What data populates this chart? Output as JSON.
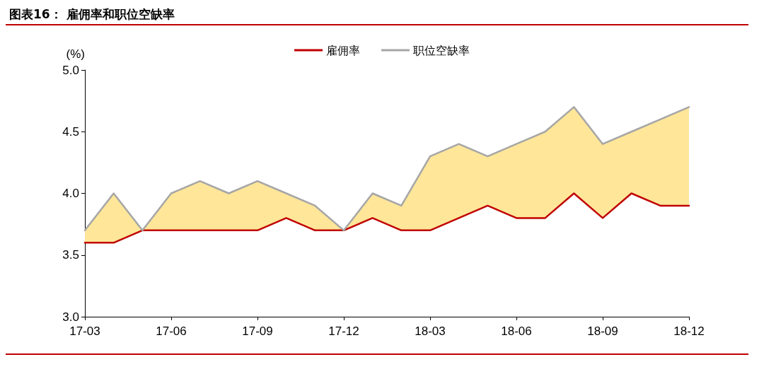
{
  "chart_data": {
    "type": "line",
    "title": "图表16： 雇佣率和职位空缺率",
    "ylabel": "(%)",
    "categories": [
      "17-03",
      null,
      null,
      "17-06",
      null,
      null,
      "17-09",
      null,
      null,
      "17-12",
      null,
      null,
      "18-03",
      null,
      null,
      "18-06",
      null,
      null,
      "18-09",
      null,
      null,
      "18-12"
    ],
    "series": [
      {
        "name": "雇佣率",
        "color": "#c00000",
        "values": [
          3.6,
          3.6,
          3.7,
          3.7,
          3.7,
          3.7,
          3.7,
          3.8,
          3.7,
          3.7,
          3.8,
          3.7,
          3.7,
          3.8,
          3.9,
          3.8,
          3.8,
          4.0,
          3.8,
          4.0,
          3.9,
          3.9
        ]
      },
      {
        "name": "职位空缺率",
        "color": "#a6a6a6",
        "values": [
          3.7,
          4.0,
          3.7,
          4.0,
          4.1,
          4.0,
          4.1,
          4.0,
          3.9,
          3.7,
          4.0,
          3.9,
          4.3,
          4.4,
          4.3,
          4.4,
          4.5,
          4.7,
          4.4,
          4.5,
          4.6,
          4.7
        ],
        "lower": [
          3.6,
          3.6,
          3.7,
          3.7,
          3.7,
          3.7,
          3.7,
          3.8,
          3.7,
          3.7,
          3.8,
          3.7,
          3.7,
          3.8,
          3.9,
          3.8,
          3.8,
          4.0,
          3.8,
          4.0,
          3.9,
          3.9
        ],
        "upper": [
          3.7,
          4.0,
          3.7,
          4.0,
          4.1,
          4.0,
          4.1,
          4.0,
          3.9,
          3.7,
          4.0,
          3.9,
          4.3,
          4.4,
          4.3,
          4.4,
          4.5,
          4.7,
          4.4,
          4.5,
          4.6,
          4.7
        ]
      }
    ],
    "ylim": [
      3,
      5
    ],
    "yticks": [
      {
        "value": 3,
        "label": "3.0"
      },
      3.5,
      {
        "value": 4,
        "label": "4.0"
      },
      4.5,
      {
        "value": 5,
        "label": "5.0"
      }
    ],
    "grid": false,
    "legend": "top",
    "marker": "none",
    "line_style": "solid"
  }
}
